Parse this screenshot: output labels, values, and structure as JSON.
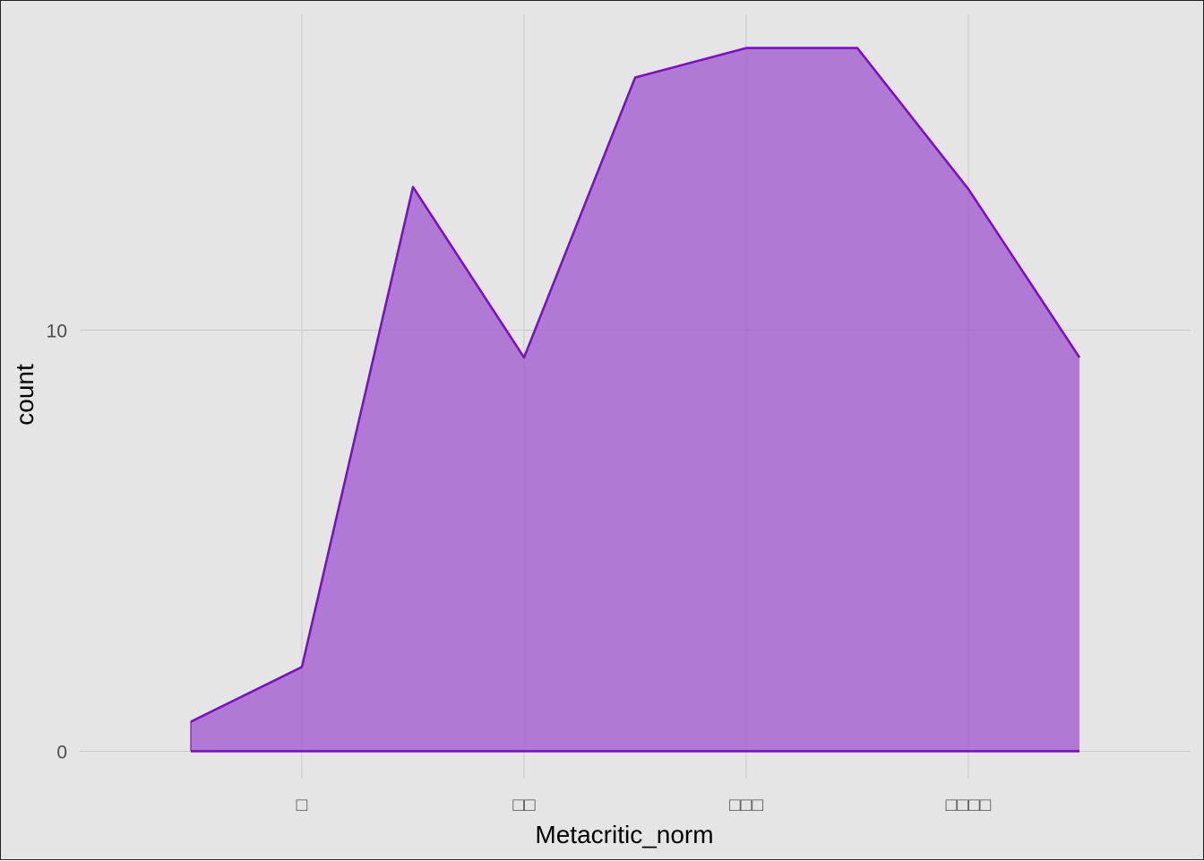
{
  "chart_data": {
    "type": "area",
    "title": "",
    "xlabel": "Metacritic_norm",
    "ylabel": "count",
    "x": [
      -0.5,
      0,
      0.5,
      1,
      1.5,
      2,
      2.5,
      3,
      3.5
    ],
    "values": [
      0.7,
      2,
      13.4,
      9.35,
      16,
      16.7,
      16.7,
      13.35,
      9.35
    ],
    "xlim": [
      -1,
      4
    ],
    "ylim": [
      -0.65,
      17.5
    ],
    "x_ticks": [
      {
        "value": 0,
        "label": "□"
      },
      {
        "value": 1,
        "label": "□□"
      },
      {
        "value": 2,
        "label": "□□□"
      },
      {
        "value": 3,
        "label": "□□□□"
      }
    ],
    "y_ticks": [
      {
        "value": 0,
        "label": "0"
      },
      {
        "value": 10,
        "label": "10"
      }
    ],
    "grid": true,
    "legend": "none",
    "colors": {
      "fill": "#a35fd0",
      "fill_opacity": 0.8,
      "line": "#7a12c4",
      "panel": "#e5e5e5",
      "grid": "#c9c9c9"
    }
  }
}
